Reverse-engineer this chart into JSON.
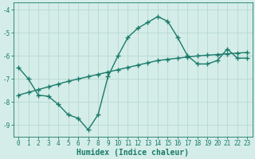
{
  "line1_x": [
    0,
    1,
    2,
    3,
    4,
    5,
    6,
    7,
    8,
    9,
    10,
    11,
    12,
    13,
    14,
    15,
    16,
    17,
    18,
    19,
    20,
    21,
    22,
    23
  ],
  "line1_y": [
    -6.5,
    -7.0,
    -7.7,
    -7.75,
    -8.1,
    -8.55,
    -8.7,
    -9.2,
    -8.55,
    -6.9,
    -6.0,
    -5.2,
    -4.8,
    -4.55,
    -4.3,
    -4.5,
    -5.2,
    -6.0,
    -6.35,
    -6.35,
    -6.2,
    -5.7,
    -6.1,
    -6.1
  ],
  "line2_x": [
    0,
    1,
    2,
    3,
    4,
    5,
    6,
    7,
    8,
    9,
    10,
    11,
    12,
    13,
    14,
    15,
    16,
    17,
    18,
    19,
    20,
    21,
    22,
    23
  ],
  "line2_y": [
    -7.7,
    -7.58,
    -7.46,
    -7.34,
    -7.22,
    -7.1,
    -7.0,
    -6.9,
    -6.8,
    -6.7,
    -6.6,
    -6.5,
    -6.4,
    -6.3,
    -6.2,
    -6.15,
    -6.1,
    -6.05,
    -6.0,
    -5.97,
    -5.94,
    -5.91,
    -5.88,
    -5.85
  ],
  "line_color": "#1a7a6a",
  "bg_color": "#d4ede8",
  "grid_color": "#b8d8d2",
  "xlabel": "Humidex (Indice chaleur)",
  "ylim": [
    -9.5,
    -3.7
  ],
  "xlim": [
    -0.5,
    23.5
  ],
  "yticks": [
    -9,
    -8,
    -7,
    -6,
    -5,
    -4
  ],
  "xticks": [
    0,
    1,
    2,
    3,
    4,
    5,
    6,
    7,
    8,
    9,
    10,
    11,
    12,
    13,
    14,
    15,
    16,
    17,
    18,
    19,
    20,
    21,
    22,
    23
  ],
  "marker": "+",
  "markersize": 4,
  "linewidth": 1.0,
  "tick_fontsize": 5.5,
  "xlabel_fontsize": 7.0
}
